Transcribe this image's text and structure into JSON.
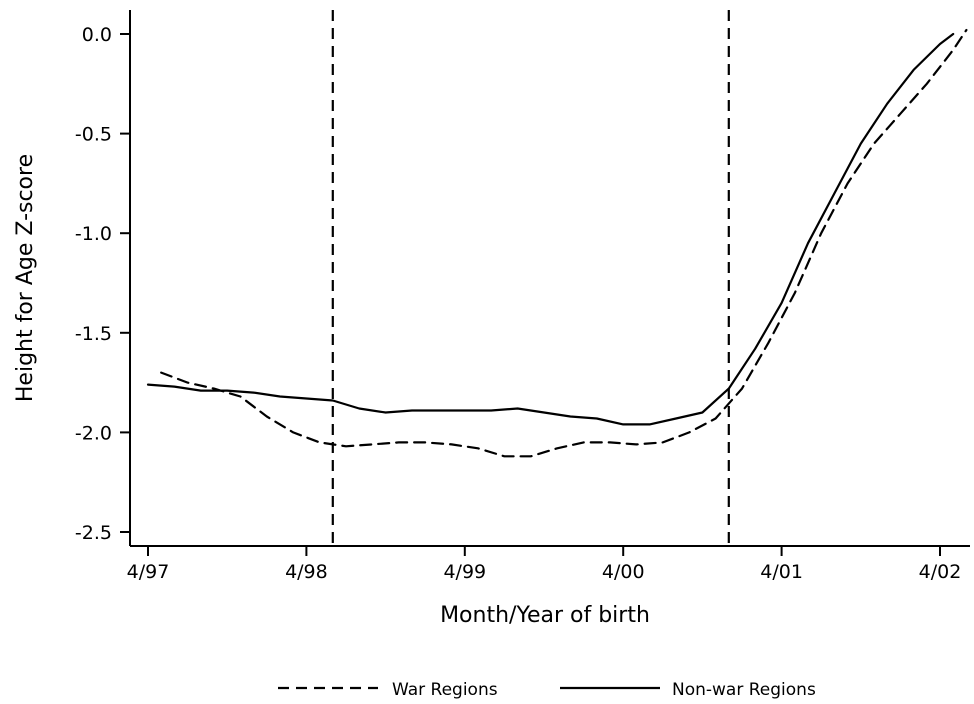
{
  "chart_data": {
    "type": "line",
    "title": "",
    "xlabel": "Month/Year of birth",
    "ylabel": "Height for Age Z-score",
    "x_ticks": [
      {
        "date": "1997-04",
        "label": "4/97"
      },
      {
        "date": "1998-04",
        "label": "4/98"
      },
      {
        "date": "1999-04",
        "label": "4/99"
      },
      {
        "date": "2000-04",
        "label": "4/00"
      },
      {
        "date": "2001-04",
        "label": "4/01"
      },
      {
        "date": "2002-04",
        "label": "4/02"
      }
    ],
    "xlim": [
      "1997-03",
      "2002-05"
    ],
    "y_ticks": [
      0.0,
      -0.5,
      -1.0,
      -1.5,
      -2.0,
      -2.5
    ],
    "y_tick_labels": [
      "0.0",
      "-0.5",
      "-1.0",
      "-1.5",
      "-2.0",
      "-2.5"
    ],
    "ylim": [
      -2.55,
      0.12
    ],
    "grid": false,
    "legend_position": "bottom",
    "vertical_lines": [
      {
        "date": "1998-06",
        "style": "dashed"
      },
      {
        "date": "2000-12",
        "style": "dashed"
      }
    ],
    "series": [
      {
        "name": "War Regions",
        "style": "dashed",
        "color": "#000000",
        "points": [
          {
            "x": "1997-05",
            "y": -1.7
          },
          {
            "x": "1997-07",
            "y": -1.75
          },
          {
            "x": "1997-09",
            "y": -1.78
          },
          {
            "x": "1997-11",
            "y": -1.82
          },
          {
            "x": "1998-01",
            "y": -1.92
          },
          {
            "x": "1998-03",
            "y": -2.0
          },
          {
            "x": "1998-05",
            "y": -2.05
          },
          {
            "x": "1998-07",
            "y": -2.07
          },
          {
            "x": "1998-09",
            "y": -2.06
          },
          {
            "x": "1998-11",
            "y": -2.05
          },
          {
            "x": "1999-01",
            "y": -2.05
          },
          {
            "x": "1999-03",
            "y": -2.06
          },
          {
            "x": "1999-05",
            "y": -2.08
          },
          {
            "x": "1999-07",
            "y": -2.12
          },
          {
            "x": "1999-09",
            "y": -2.12
          },
          {
            "x": "1999-11",
            "y": -2.08
          },
          {
            "x": "2000-01",
            "y": -2.05
          },
          {
            "x": "2000-03",
            "y": -2.05
          },
          {
            "x": "2000-05",
            "y": -2.06
          },
          {
            "x": "2000-07",
            "y": -2.05
          },
          {
            "x": "2000-09",
            "y": -2.0
          },
          {
            "x": "2000-11",
            "y": -1.93
          },
          {
            "x": "2001-01",
            "y": -1.78
          },
          {
            "x": "2001-03",
            "y": -1.55
          },
          {
            "x": "2001-05",
            "y": -1.3
          },
          {
            "x": "2001-07",
            "y": -1.0
          },
          {
            "x": "2001-09",
            "y": -0.75
          },
          {
            "x": "2001-11",
            "y": -0.55
          },
          {
            "x": "2002-01",
            "y": -0.4
          },
          {
            "x": "2002-03",
            "y": -0.25
          },
          {
            "x": "2002-05",
            "y": -0.08
          },
          {
            "x": "2002-06",
            "y": 0.02
          }
        ]
      },
      {
        "name": "Non-war Regions",
        "style": "solid",
        "color": "#000000",
        "points": [
          {
            "x": "1997-04",
            "y": -1.76
          },
          {
            "x": "1997-06",
            "y": -1.77
          },
          {
            "x": "1997-08",
            "y": -1.79
          },
          {
            "x": "1997-10",
            "y": -1.79
          },
          {
            "x": "1997-12",
            "y": -1.8
          },
          {
            "x": "1998-02",
            "y": -1.82
          },
          {
            "x": "1998-04",
            "y": -1.83
          },
          {
            "x": "1998-06",
            "y": -1.84
          },
          {
            "x": "1998-08",
            "y": -1.88
          },
          {
            "x": "1998-10",
            "y": -1.9
          },
          {
            "x": "1998-12",
            "y": -1.89
          },
          {
            "x": "1999-02",
            "y": -1.89
          },
          {
            "x": "1999-04",
            "y": -1.89
          },
          {
            "x": "1999-06",
            "y": -1.89
          },
          {
            "x": "1999-08",
            "y": -1.88
          },
          {
            "x": "1999-10",
            "y": -1.9
          },
          {
            "x": "1999-12",
            "y": -1.92
          },
          {
            "x": "2000-02",
            "y": -1.93
          },
          {
            "x": "2000-04",
            "y": -1.96
          },
          {
            "x": "2000-06",
            "y": -1.96
          },
          {
            "x": "2000-08",
            "y": -1.93
          },
          {
            "x": "2000-10",
            "y": -1.9
          },
          {
            "x": "2000-12",
            "y": -1.78
          },
          {
            "x": "2001-02",
            "y": -1.58
          },
          {
            "x": "2001-04",
            "y": -1.35
          },
          {
            "x": "2001-06",
            "y": -1.05
          },
          {
            "x": "2001-08",
            "y": -0.8
          },
          {
            "x": "2001-10",
            "y": -0.55
          },
          {
            "x": "2001-12",
            "y": -0.35
          },
          {
            "x": "2002-02",
            "y": -0.18
          },
          {
            "x": "2002-04",
            "y": -0.05
          },
          {
            "x": "2002-05",
            "y": 0.0
          }
        ]
      }
    ]
  }
}
